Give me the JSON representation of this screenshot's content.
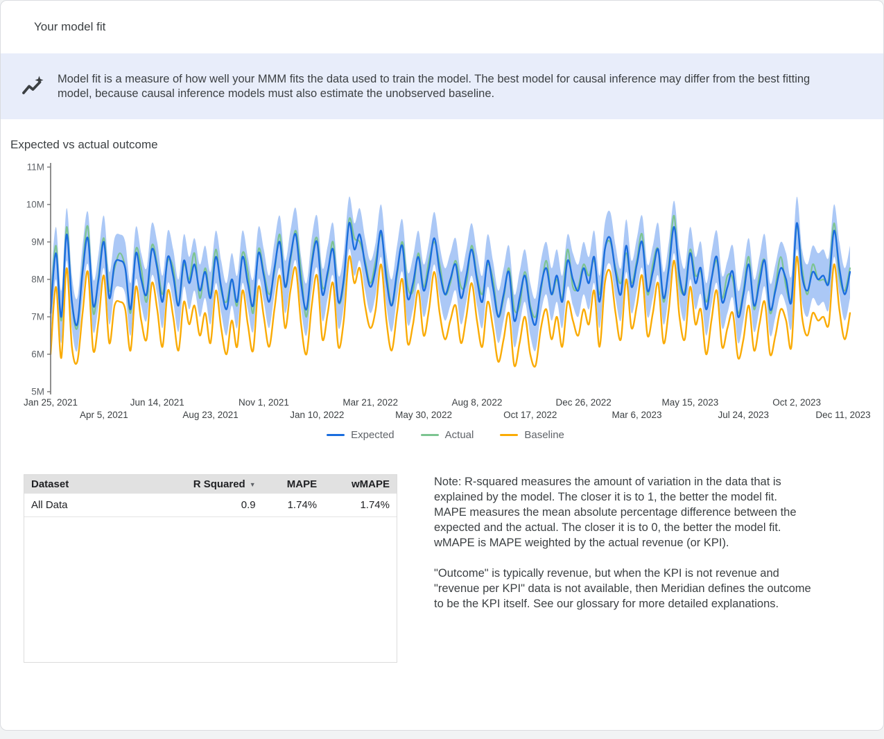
{
  "header": {
    "title": "Your model fit"
  },
  "banner": {
    "icon": "trend-sparkle-icon",
    "text": "Model fit is a measure of how well your MMM fits the data used to train the model. The best model for causal inference may differ from the best fitting model, because causal inference models must also estimate the unobserved baseline."
  },
  "section": {
    "title": "Expected vs actual outcome"
  },
  "chart_data": {
    "type": "line",
    "title": "Expected vs actual outcome",
    "x_unit": "week",
    "x_start": "Jan 25, 2021",
    "x_end": "Dec 11, 2023",
    "x_tick_step": 10,
    "x_tick_labels": [
      "Jan 25, 2021",
      "Apr 5, 2021",
      "Jun 14, 2021",
      "Aug 23, 2021",
      "Nov 1, 2021",
      "Jan 10, 2022",
      "Mar 21, 2022",
      "May 30, 2022",
      "Aug 8, 2022",
      "Oct 17, 2022",
      "Dec 26, 2022",
      "Mar 6, 2023",
      "May 15, 2023",
      "Jul 24, 2023",
      "Oct 2, 2023",
      "Dec 11, 2023"
    ],
    "y_tick_labels": [
      "5M",
      "6M",
      "7M",
      "8M",
      "9M",
      "10M",
      "11M"
    ],
    "ylim": [
      5,
      11
    ],
    "y_unit": "M",
    "grid": false,
    "legend_position": "bottom",
    "band": {
      "series": "Expected",
      "halfwidth": 0.7,
      "color": "#abc8f6"
    },
    "series": [
      {
        "name": "Expected",
        "color": "#1a6dde",
        "values": [
          7.1,
          8.7,
          7.0,
          9.2,
          7.4,
          6.8,
          8.2,
          9.1,
          7.3,
          8.0,
          9.0,
          7.5,
          8.4,
          8.5,
          8.3,
          7.2,
          8.7,
          8.0,
          7.6,
          8.8,
          8.3,
          7.4,
          8.6,
          8.1,
          7.3,
          8.5,
          7.9,
          8.4,
          7.7,
          8.2,
          7.5,
          8.6,
          7.8,
          7.2,
          8.0,
          7.4,
          8.6,
          7.9,
          7.3,
          8.7,
          8.1,
          7.4,
          8.3,
          9.0,
          7.8,
          8.6,
          9.2,
          7.9,
          7.2,
          8.4,
          9.0,
          7.6,
          8.2,
          8.8,
          7.4,
          8.0,
          9.5,
          8.8,
          9.2,
          8.4,
          7.8,
          8.3,
          9.3,
          8.0,
          7.3,
          8.2,
          8.9,
          7.5,
          7.9,
          8.6,
          7.7,
          8.3,
          9.1,
          8.2,
          7.6,
          8.0,
          8.4,
          7.5,
          8.1,
          8.8,
          8.0,
          7.4,
          8.5,
          7.8,
          7.0,
          7.6,
          8.2,
          6.9,
          7.5,
          8.1,
          7.2,
          6.8,
          7.8,
          8.3,
          7.6,
          8.1,
          7.4,
          8.5,
          8.0,
          7.7,
          8.3,
          7.9,
          8.6,
          7.4,
          8.8,
          9.1,
          8.2,
          7.6,
          8.9,
          7.8,
          8.4,
          9.0,
          7.7,
          8.2,
          8.8,
          7.5,
          8.3,
          9.4,
          8.1,
          7.6,
          8.7,
          7.9,
          8.3,
          7.2,
          8.0,
          8.6,
          7.4,
          7.8,
          8.2,
          7.0,
          7.6,
          8.4,
          7.3,
          7.9,
          8.5,
          7.2,
          7.7,
          8.3,
          8.0,
          7.4,
          9.5,
          8.1,
          7.7,
          8.2,
          8.0,
          8.1,
          7.9,
          9.3,
          8.3,
          7.6,
          8.2
        ]
      },
      {
        "name": "Actual",
        "color": "#7cc490",
        "values": [
          7.2,
          8.9,
          6.9,
          9.4,
          7.4,
          6.7,
          8.3,
          9.4,
          7.1,
          8.1,
          9.1,
          7.7,
          8.3,
          8.7,
          8.3,
          7.1,
          8.8,
          8.3,
          7.4,
          8.9,
          8.4,
          7.6,
          8.5,
          8.3,
          7.3,
          8.4,
          8.0,
          8.7,
          7.5,
          8.3,
          7.6,
          8.8,
          7.7,
          7.4,
          8.0,
          7.3,
          8.7,
          8.2,
          7.1,
          8.8,
          8.2,
          7.6,
          8.2,
          9.2,
          7.8,
          8.5,
          9.3,
          8.2,
          7.0,
          8.5,
          9.1,
          7.8,
          8.1,
          9.0,
          7.4,
          7.9,
          9.6,
          9.1,
          9.0,
          8.5,
          7.9,
          8.5,
          9.2,
          8.2,
          7.3,
          8.1,
          9.0,
          7.8,
          7.7,
          8.7,
          7.8,
          8.5,
          9.0,
          8.4,
          7.6,
          7.9,
          8.5,
          7.8,
          7.9,
          8.9,
          8.1,
          7.6,
          8.4,
          8.0,
          7.0,
          7.5,
          8.3,
          7.2,
          7.3,
          8.2,
          7.3,
          7.0,
          7.7,
          8.5,
          7.6,
          8.0,
          7.5,
          8.8,
          7.8,
          7.8,
          8.4,
          8.1,
          8.5,
          7.6,
          8.8,
          9.0,
          8.3,
          7.9,
          8.7,
          7.9,
          8.5,
          9.2,
          7.6,
          8.4,
          8.8,
          7.4,
          8.4,
          9.7,
          7.9,
          7.7,
          8.8,
          8.1,
          8.2,
          7.4,
          8.0,
          8.5,
          7.5,
          8.1,
          8.0,
          7.1,
          7.7,
          8.6,
          7.2,
          8.1,
          8.5,
          7.1,
          7.8,
          8.6,
          7.8,
          7.5,
          9.4,
          8.3,
          7.6,
          8.4,
          8.0,
          8.0,
          8.0,
          9.5,
          8.1,
          7.7,
          8.3
        ]
      },
      {
        "name": "Baseline",
        "color": "#faab05",
        "values": [
          6.0,
          7.8,
          5.9,
          8.3,
          6.2,
          5.8,
          7.1,
          8.2,
          6.1,
          6.9,
          8.1,
          6.3,
          7.3,
          7.4,
          7.2,
          6.1,
          7.8,
          6.9,
          6.4,
          7.9,
          7.2,
          6.2,
          7.7,
          7.0,
          6.1,
          7.4,
          6.8,
          7.3,
          6.5,
          7.1,
          6.3,
          7.7,
          6.7,
          6.0,
          6.9,
          6.2,
          7.7,
          6.8,
          6.1,
          7.8,
          7.0,
          6.2,
          7.2,
          8.1,
          6.7,
          7.7,
          8.3,
          6.8,
          6.0,
          7.3,
          8.1,
          6.4,
          7.1,
          7.9,
          6.2,
          6.9,
          8.6,
          7.9,
          8.3,
          7.3,
          6.7,
          7.2,
          8.4,
          6.9,
          6.1,
          7.1,
          8.0,
          6.3,
          6.8,
          7.7,
          6.5,
          7.2,
          8.2,
          7.1,
          6.4,
          6.9,
          7.3,
          6.3,
          7.0,
          7.9,
          6.9,
          6.2,
          7.4,
          6.7,
          5.8,
          6.4,
          7.1,
          5.7,
          6.3,
          7.0,
          6.0,
          5.7,
          6.7,
          7.2,
          6.4,
          7.0,
          6.2,
          7.4,
          6.9,
          6.5,
          7.2,
          6.8,
          7.7,
          6.2,
          7.9,
          8.2,
          7.1,
          6.4,
          8.0,
          6.7,
          7.3,
          8.1,
          6.5,
          7.1,
          7.9,
          6.3,
          7.2,
          8.5,
          7.0,
          6.4,
          7.8,
          6.8,
          7.2,
          6.0,
          6.9,
          7.7,
          6.2,
          6.7,
          7.1,
          5.9,
          6.4,
          7.3,
          6.1,
          6.8,
          7.4,
          6.0,
          6.5,
          7.2,
          6.9,
          6.2,
          8.6,
          7.0,
          6.5,
          7.1,
          6.9,
          7.0,
          6.8,
          8.4,
          7.2,
          6.4,
          7.1
        ]
      }
    ]
  },
  "table": {
    "headers": [
      "Dataset",
      "R Squared",
      "MAPE",
      "wMAPE"
    ],
    "sort_icon": "sort-descending-arrow",
    "rows": [
      {
        "dataset": "All Data",
        "r_squared": "0.9",
        "mape": "1.74%",
        "wmape": "1.74%"
      }
    ]
  },
  "note": {
    "paragraphs": [
      "Note: R-squared measures the amount of variation in the data that is explained by the model. The closer it is to 1, the better the model fit. MAPE measures the mean absolute percentage difference between the expected and the actual. The closer it is to 0, the better the model fit. wMAPE is MAPE weighted by the actual revenue (or KPI).",
      "\"Outcome\" is typically revenue, but when the KPI is not revenue and \"revenue per KPI\" data is not available, then Meridian defines the outcome to be the KPI itself. See our glossary for more detailed explanations."
    ]
  },
  "colors": {
    "banner_bg": "#e8edfa",
    "expected": "#1a6dde",
    "actual": "#7cc490",
    "baseline": "#faab05",
    "confidence_band": "#abc8f6",
    "table_header_bg": "#e1e1e1"
  }
}
